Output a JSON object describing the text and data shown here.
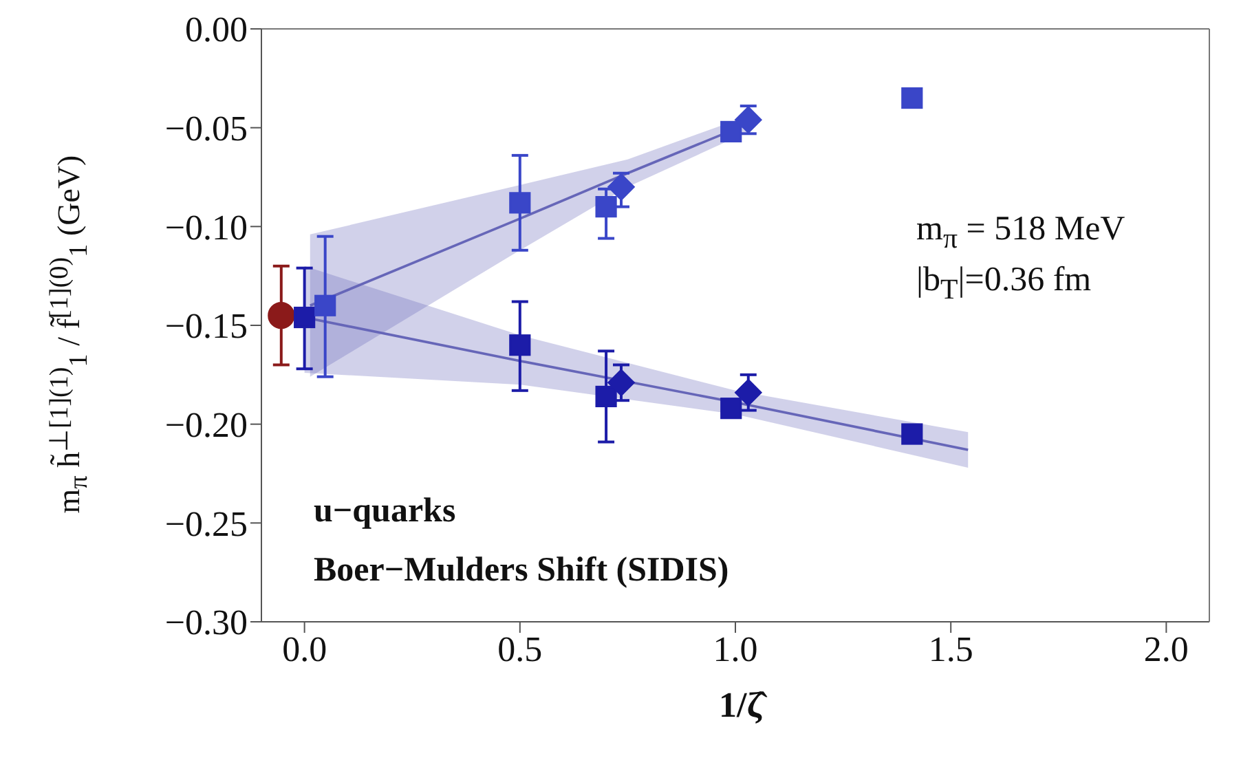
{
  "chart_data": {
    "type": "scatter",
    "xlabel": "1/ζ̂",
    "ylabel": "m$_{π}$ h̃$^{⊥[1](1)}$$_{1}$ / f̃$^{[1](0)}$$_{1}$ (GeV)",
    "xlim": [
      -0.1,
      2.1
    ],
    "xticks": [
      {
        "value": 0,
        "label": "0.0"
      },
      0.5,
      {
        "value": 1,
        "label": "1.0"
      },
      1.5,
      {
        "value": 2,
        "label": "2.0"
      }
    ],
    "ylim": [
      -0.3,
      0
    ],
    "yticks": [
      {
        "value": -0.3,
        "label": "−0.30"
      },
      {
        "value": -0.25,
        "label": "−0.25"
      },
      {
        "value": -0.2,
        "label": "−0.20"
      },
      {
        "value": -0.15,
        "label": "−0.15"
      },
      {
        "value": -0.1,
        "label": "−0.10"
      },
      {
        "value": -0.05,
        "label": "−0.05"
      },
      {
        "value": 0,
        "label": "0.00"
      }
    ],
    "grid": false,
    "legend": false,
    "annotations": [
      "m$_{π}$ = 518 MeV",
      "|b$_{T}$|=0.36 fm",
      "u−quarks",
      "Boer−Mulders Shift (SIDIS)"
    ],
    "series": [
      {
        "type": "line",
        "color": "#6666b8",
        "x": [
          0.013,
          0.5,
          0.75,
          1.03
        ],
        "values": [
          -0.14,
          -0.096,
          -0.073,
          -0.048
        ],
        "lower": [
          -0.176,
          -0.112,
          -0.08,
          -0.052
        ],
        "upper": [
          -0.104,
          -0.079,
          -0.066,
          -0.044
        ]
      },
      {
        "type": "line",
        "color": "#6666b8",
        "x": [
          0,
          0.5,
          1,
          1.54
        ],
        "values": [
          -0.146,
          -0.168,
          -0.189,
          -0.213
        ],
        "lower": [
          -0.174,
          -0.18,
          -0.195,
          -0.222
        ],
        "upper": [
          -0.12,
          -0.155,
          -0.183,
          -0.204
        ]
      },
      {
        "marker": "circle",
        "color": "#8b1a1a",
        "x": [
          -0.054
        ],
        "values": [
          -0.145
        ],
        "errors": [
          [
            -0.17,
            -0.12
          ]
        ]
      },
      {
        "marker": "square",
        "color": "#1c1ca8",
        "x": [
          0,
          0.5,
          0.7,
          0.99,
          1.41
        ],
        "values": [
          -0.146,
          -0.16,
          -0.186,
          -0.192,
          -0.205
        ],
        "errors": [
          [
            -0.172,
            -0.121
          ],
          [
            -0.183,
            -0.138
          ],
          [
            -0.209,
            -0.163
          ],
          null,
          null
        ]
      },
      {
        "marker": "diamond",
        "color": "#1c1ca8",
        "x": [
          0.735,
          1.03
        ],
        "values": [
          -0.179,
          -0.184
        ],
        "errors": [
          [
            -0.188,
            -0.17
          ],
          [
            -0.193,
            -0.175
          ]
        ]
      },
      {
        "marker": "square",
        "color": "#3a46c8",
        "x": [
          0.048,
          0.5,
          0.7,
          0.99,
          1.41
        ],
        "values": [
          -0.14,
          -0.088,
          -0.09,
          -0.052,
          -0.035
        ],
        "errors": [
          [
            -0.176,
            -0.105
          ],
          [
            -0.112,
            -0.064
          ],
          [
            -0.106,
            -0.081
          ],
          null,
          null
        ]
      },
      {
        "marker": "diamond",
        "color": "#3a46c8",
        "x": [
          0.735,
          1.03
        ],
        "values": [
          -0.08,
          -0.046
        ],
        "errors": [
          [
            -0.09,
            -0.073
          ],
          [
            -0.053,
            -0.039
          ]
        ]
      }
    ]
  }
}
